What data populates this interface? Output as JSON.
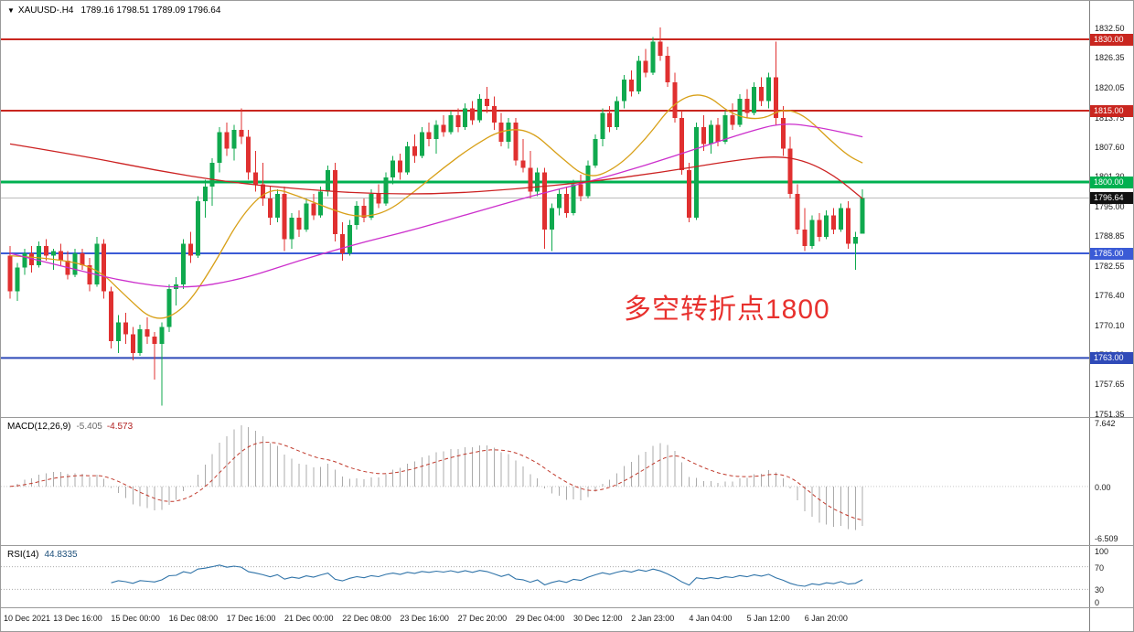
{
  "header": {
    "collapse_icon": "▼",
    "symbol": "XAUUSD-.H4",
    "ohlc": "1789.16 1798.51 1789.09 1796.64"
  },
  "annotation": {
    "text": "多空转折点1800",
    "color": "#e8312e"
  },
  "chart_data": {
    "type": "candlestick",
    "title": "XAUUSD- H4 chart",
    "symbol": "XAUUSD-",
    "timeframe": "H4",
    "grid": false,
    "legend_position": "none",
    "ylim": [
      1751.35,
      1832.5
    ],
    "colors": {
      "up": "#0fa94e",
      "down": "#e03030",
      "background": "#ffffff"
    },
    "y_axis": {
      "ticks": [
        "1832.50",
        "1826.35",
        "1820.05",
        "1813.75",
        "1807.60",
        "1801.30",
        "1795.00",
        "1788.85",
        "1782.55",
        "1776.40",
        "1770.10",
        "1763.80",
        "1757.65",
        "1751.35"
      ]
    },
    "hlines": [
      {
        "price": 1830.0,
        "label": "1830.00",
        "color": "#c9261f",
        "width": 2
      },
      {
        "price": 1815.0,
        "label": "1815.00",
        "color": "#c9261f",
        "width": 2
      },
      {
        "price": 1800.0,
        "label": "1800.00",
        "color": "#00b050",
        "width": 3
      },
      {
        "price": 1785.0,
        "label": "1785.00",
        "color": "#3b5bd6",
        "width": 2
      },
      {
        "price": 1763.0,
        "label": "1763.00",
        "color": "#2f4ab8",
        "width": 2
      }
    ],
    "current_price": {
      "value": 1796.64,
      "label": "1796.64",
      "bg": "#111111"
    },
    "candles": [
      [
        1784.5,
        1786.5,
        1775.5,
        1777
      ],
      [
        1777,
        1783,
        1775,
        1782
      ],
      [
        1782,
        1786,
        1780.5,
        1785
      ],
      [
        1785,
        1786.5,
        1781,
        1782.5
      ],
      [
        1782.5,
        1787.5,
        1782,
        1786.5
      ],
      [
        1786.5,
        1788,
        1783.5,
        1784.5
      ],
      [
        1784.5,
        1786,
        1781.5,
        1785.5
      ],
      [
        1785.5,
        1787,
        1782.5,
        1783.5
      ],
      [
        1783.5,
        1785.5,
        1779.5,
        1780.5
      ],
      [
        1780.5,
        1786,
        1780,
        1785
      ],
      [
        1785,
        1786,
        1781.5,
        1782.5
      ],
      [
        1782.5,
        1784,
        1777,
        1778.5
      ],
      [
        1778.5,
        1788.5,
        1778,
        1787
      ],
      [
        1787,
        1788,
        1775.5,
        1777
      ],
      [
        1777,
        1778,
        1765,
        1766.5
      ],
      [
        1766.5,
        1772,
        1764,
        1770.5
      ],
      [
        1770.5,
        1772.5,
        1766,
        1768
      ],
      [
        1768,
        1769.5,
        1762.5,
        1764
      ],
      [
        1764,
        1770,
        1763.5,
        1769
      ],
      [
        1769,
        1771.5,
        1766,
        1767.5
      ],
      [
        1767.5,
        1768.5,
        1758.5,
        1766
      ],
      [
        1766,
        1770.5,
        1753,
        1769.5
      ],
      [
        1769.5,
        1778.5,
        1768.5,
        1777.5
      ],
      [
        1777.5,
        1780,
        1774,
        1778.5
      ],
      [
        1778.5,
        1788,
        1777.5,
        1787
      ],
      [
        1787,
        1789.5,
        1783,
        1784.5
      ],
      [
        1784.5,
        1797,
        1784,
        1796
      ],
      [
        1796,
        1800.5,
        1792.5,
        1799
      ],
      [
        1799,
        1805,
        1795,
        1804
      ],
      [
        1804,
        1811.5,
        1802,
        1810.5
      ],
      [
        1810.5,
        1812.5,
        1805.5,
        1807
      ],
      [
        1807,
        1812,
        1804.5,
        1811
      ],
      [
        1811,
        1815.5,
        1808,
        1809.5
      ],
      [
        1809.5,
        1811,
        1800.5,
        1802
      ],
      [
        1802,
        1806.5,
        1798,
        1799.5
      ],
      [
        1799.5,
        1804,
        1795,
        1796.5
      ],
      [
        1796.5,
        1799,
        1791,
        1792.5
      ],
      [
        1792.5,
        1798.5,
        1791.5,
        1797.5
      ],
      [
        1797.5,
        1799,
        1785.5,
        1788
      ],
      [
        1788,
        1793.5,
        1786,
        1792.5
      ],
      [
        1792.5,
        1794,
        1788.5,
        1790
      ],
      [
        1790,
        1796.5,
        1789.5,
        1795.5
      ],
      [
        1795.5,
        1797.5,
        1792,
        1793
      ],
      [
        1793,
        1799,
        1792.5,
        1798
      ],
      [
        1798,
        1803.5,
        1797,
        1802.5
      ],
      [
        1802.5,
        1804,
        1787.5,
        1789
      ],
      [
        1789,
        1791.5,
        1783.5,
        1785
      ],
      [
        1785,
        1792,
        1784.5,
        1791
      ],
      [
        1791,
        1796,
        1790,
        1795
      ],
      [
        1795,
        1796.5,
        1791.5,
        1792.5
      ],
      [
        1792.5,
        1798.5,
        1792,
        1797.5
      ],
      [
        1797.5,
        1799.5,
        1794.5,
        1795.5
      ],
      [
        1795.5,
        1802,
        1795,
        1801
      ],
      [
        1801,
        1805.5,
        1799.5,
        1804.5
      ],
      [
        1804.5,
        1806,
        1800.5,
        1802
      ],
      [
        1802,
        1808.5,
        1801.5,
        1807.5
      ],
      [
        1807.5,
        1810,
        1804,
        1805.5
      ],
      [
        1805.5,
        1811.5,
        1805,
        1810.5
      ],
      [
        1810.5,
        1812.5,
        1807.5,
        1809
      ],
      [
        1809,
        1813,
        1806,
        1812
      ],
      [
        1812,
        1814,
        1809.5,
        1810.5
      ],
      [
        1810.5,
        1815,
        1810,
        1814
      ],
      [
        1814,
        1815.5,
        1810.5,
        1811.5
      ],
      [
        1811.5,
        1816.5,
        1811,
        1815.5
      ],
      [
        1815.5,
        1817,
        1812,
        1813
      ],
      [
        1813,
        1818.5,
        1812.5,
        1817.5
      ],
      [
        1817.5,
        1820,
        1814.5,
        1816
      ],
      [
        1816,
        1818,
        1811,
        1812.5
      ],
      [
        1812.5,
        1814.5,
        1807.5,
        1808.5
      ],
      [
        1808.5,
        1813.5,
        1807,
        1812.5
      ],
      [
        1812.5,
        1813.5,
        1803.5,
        1804.5
      ],
      [
        1804.5,
        1809,
        1802,
        1803
      ],
      [
        1803,
        1806.5,
        1796.5,
        1798
      ],
      [
        1798,
        1803,
        1797,
        1802
      ],
      [
        1802,
        1803,
        1786,
        1790
      ],
      [
        1790,
        1795.5,
        1785.5,
        1794.5
      ],
      [
        1794.5,
        1798.5,
        1793,
        1797.5
      ],
      [
        1797.5,
        1799,
        1792.5,
        1793.5
      ],
      [
        1793.5,
        1800.5,
        1793,
        1799.5
      ],
      [
        1799.5,
        1801.5,
        1796,
        1797
      ],
      [
        1797,
        1804.5,
        1796.5,
        1803.5
      ],
      [
        1803.5,
        1810,
        1803,
        1809
      ],
      [
        1809,
        1815.5,
        1807.5,
        1814.5
      ],
      [
        1814.5,
        1816,
        1810.5,
        1811.5
      ],
      [
        1811.5,
        1818,
        1811,
        1817
      ],
      [
        1817,
        1822.5,
        1815.5,
        1821.5
      ],
      [
        1821.5,
        1823.5,
        1818,
        1819
      ],
      [
        1819,
        1826.5,
        1818.5,
        1825.5
      ],
      [
        1825.5,
        1828,
        1822,
        1823
      ],
      [
        1823,
        1830.5,
        1822.5,
        1829.5
      ],
      [
        1829.5,
        1832.5,
        1825.5,
        1826.5
      ],
      [
        1826.5,
        1828.5,
        1820,
        1821
      ],
      [
        1821,
        1823,
        1812.5,
        1813.5
      ],
      [
        1813.5,
        1815,
        1801.5,
        1802.5
      ],
      [
        1802.5,
        1804,
        1791.5,
        1792.5
      ],
      [
        1792.5,
        1812.5,
        1792,
        1811.5
      ],
      [
        1811.5,
        1814,
        1806.5,
        1808
      ],
      [
        1808,
        1813,
        1806,
        1812
      ],
      [
        1812,
        1813.5,
        1807.5,
        1808.5
      ],
      [
        1808.5,
        1815,
        1808,
        1814
      ],
      [
        1814,
        1816.5,
        1811,
        1812
      ],
      [
        1812,
        1818.5,
        1811.5,
        1817.5
      ],
      [
        1817.5,
        1819.5,
        1813.5,
        1814.5
      ],
      [
        1814.5,
        1821,
        1814,
        1820
      ],
      [
        1820,
        1822,
        1816,
        1817
      ],
      [
        1817,
        1823,
        1815.5,
        1822
      ],
      [
        1822,
        1829.5,
        1812,
        1813.5
      ],
      [
        1813.5,
        1816,
        1805.5,
        1807
      ],
      [
        1807,
        1809.5,
        1796.5,
        1797.5
      ],
      [
        1797.5,
        1799.5,
        1789,
        1790
      ],
      [
        1790,
        1794.5,
        1785.5,
        1786.5
      ],
      [
        1786.5,
        1793,
        1786,
        1792
      ],
      [
        1792,
        1793.5,
        1787.5,
        1788.5
      ],
      [
        1788.5,
        1794,
        1788,
        1793
      ],
      [
        1793,
        1794.5,
        1789,
        1790
      ],
      [
        1790,
        1795.5,
        1789.5,
        1794.5
      ],
      [
        1794.5,
        1796,
        1786,
        1787
      ],
      [
        1787,
        1789.5,
        1781.5,
        1788.5
      ],
      [
        1789.16,
        1798.51,
        1789.09,
        1796.64
      ]
    ],
    "ma_lines": [
      {
        "name": "ma-fast-orange",
        "color": "#d8a018",
        "points": [
          [
            0,
            1784.5
          ],
          [
            6,
            1784
          ],
          [
            12,
            1782
          ],
          [
            16,
            1776
          ],
          [
            20,
            1770.5
          ],
          [
            24,
            1773
          ],
          [
            28,
            1782
          ],
          [
            32,
            1793
          ],
          [
            36,
            1799
          ],
          [
            40,
            1797
          ],
          [
            44,
            1794.5
          ],
          [
            48,
            1792.5
          ],
          [
            52,
            1793.5
          ],
          [
            56,
            1798
          ],
          [
            60,
            1803
          ],
          [
            64,
            1807.5
          ],
          [
            68,
            1811
          ],
          [
            72,
            1811
          ],
          [
            76,
            1805.5
          ],
          [
            80,
            1800.5
          ],
          [
            84,
            1803
          ],
          [
            88,
            1809
          ],
          [
            92,
            1817
          ],
          [
            96,
            1819
          ],
          [
            100,
            1814
          ],
          [
            104,
            1813
          ],
          [
            107,
            1815.5
          ],
          [
            110,
            1814
          ],
          [
            113,
            1809.5
          ],
          [
            116,
            1805.5
          ],
          [
            118,
            1804
          ]
        ]
      },
      {
        "name": "ma-mid-magenta",
        "color": "#cc2fcc",
        "points": [
          [
            0,
            1785
          ],
          [
            8,
            1782
          ],
          [
            16,
            1779
          ],
          [
            24,
            1777.5
          ],
          [
            32,
            1779.5
          ],
          [
            40,
            1783.5
          ],
          [
            48,
            1787
          ],
          [
            56,
            1790
          ],
          [
            64,
            1793.5
          ],
          [
            72,
            1797
          ],
          [
            80,
            1800
          ],
          [
            88,
            1803.5
          ],
          [
            96,
            1807.5
          ],
          [
            102,
            1810.5
          ],
          [
            107,
            1812.5
          ],
          [
            112,
            1811.5
          ],
          [
            118,
            1809.5
          ]
        ]
      },
      {
        "name": "ma-slow-red",
        "color": "#cc2222",
        "points": [
          [
            0,
            1808
          ],
          [
            10,
            1805.5
          ],
          [
            20,
            1802.5
          ],
          [
            30,
            1800
          ],
          [
            40,
            1798.5
          ],
          [
            50,
            1797.5
          ],
          [
            60,
            1797.5
          ],
          [
            70,
            1798.5
          ],
          [
            80,
            1800
          ],
          [
            90,
            1802
          ],
          [
            100,
            1804.5
          ],
          [
            106,
            1805.5
          ],
          [
            110,
            1804.5
          ],
          [
            114,
            1801.5
          ],
          [
            118,
            1796.5
          ]
        ]
      }
    ],
    "x_labels": [
      {
        "text": "10 Dec 2021",
        "i": 0
      },
      {
        "text": "13 Dec 16:00",
        "i": 8
      },
      {
        "text": "15 Dec 00:00",
        "i": 16
      },
      {
        "text": "16 Dec 08:00",
        "i": 24
      },
      {
        "text": "17 Dec 16:00",
        "i": 32
      },
      {
        "text": "21 Dec 00:00",
        "i": 40
      },
      {
        "text": "22 Dec 08:00",
        "i": 48
      },
      {
        "text": "23 Dec 16:00",
        "i": 56
      },
      {
        "text": "27 Dec 20:00",
        "i": 64
      },
      {
        "text": "29 Dec 04:00",
        "i": 72
      },
      {
        "text": "30 Dec 12:00",
        "i": 80
      },
      {
        "text": "2 Jan 23:00",
        "i": 88
      },
      {
        "text": "4 Jan 04:00",
        "i": 96
      },
      {
        "text": "5 Jan 12:00",
        "i": 104
      },
      {
        "text": "6 Jan 20:00",
        "i": 112
      }
    ],
    "macd": {
      "label": "MACD(12,26,9)",
      "value_main": "-5.405",
      "value_signal": "-4.573",
      "params": [
        12,
        26,
        9
      ],
      "axis_ticks": [
        "7.642",
        "0.00",
        "-6.509"
      ],
      "histogram_color": "#ababab",
      "signal_color": "#c0392b"
    },
    "rsi": {
      "label": "RSI(14)",
      "value": "44.8335",
      "period": 14,
      "levels": [
        70,
        30
      ],
      "axis_ticks": [
        "100",
        "70",
        "30",
        "0"
      ],
      "line_color": "#2f73a8"
    }
  }
}
